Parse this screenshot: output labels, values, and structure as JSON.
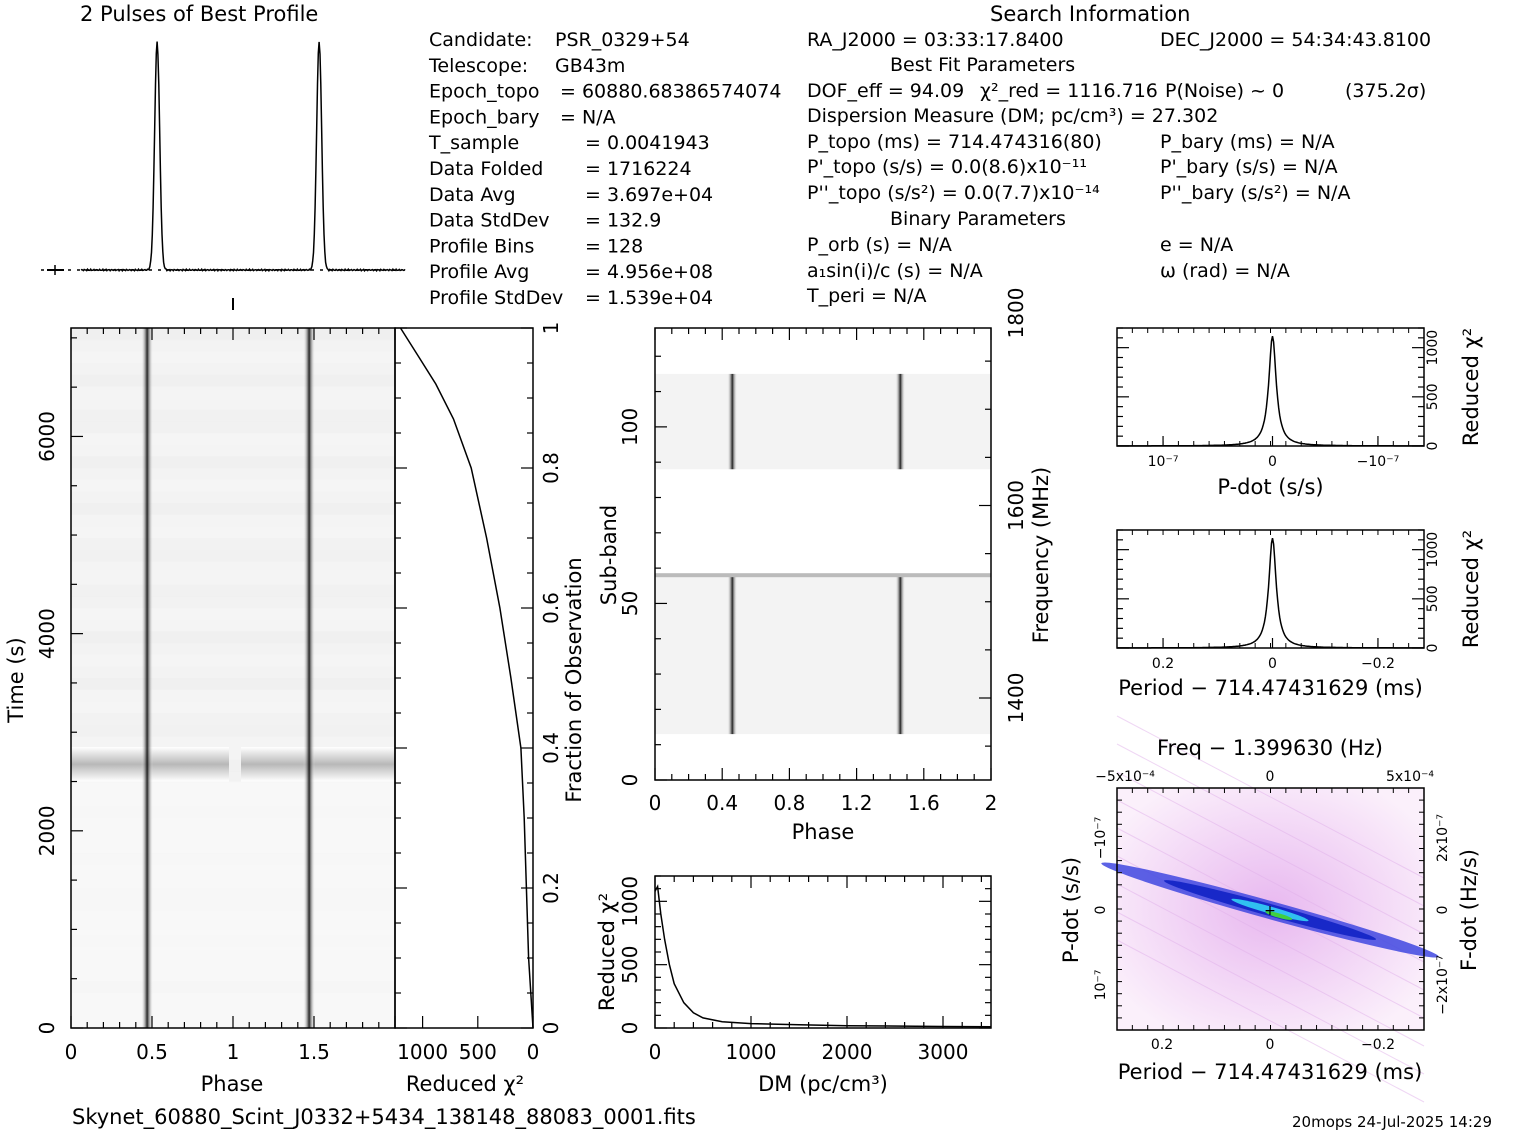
{
  "header": {
    "left_title": "2 Pulses of Best Profile",
    "right_title": "Search Information"
  },
  "info_left": [
    {
      "name": "Candidate:",
      "value": "PSR_0329+54"
    },
    {
      "name": "Telescope:",
      "value": "GB43m"
    },
    {
      "name": "Epoch_topo",
      "value": "= 60880.68386574074"
    },
    {
      "name": "Epoch_bary",
      "value": "= N/A"
    },
    {
      "name": "T_sample",
      "value": "=   0.0041943"
    },
    {
      "name": "Data Folded",
      "value": "=   1716224"
    },
    {
      "name": "Data Avg",
      "value": "=   3.697e+04"
    },
    {
      "name": "Data StdDev",
      "value": "=   132.9"
    },
    {
      "name": "Profile Bins",
      "value": "=   128"
    },
    {
      "name": "Profile Avg",
      "value": "=   4.956e+08"
    },
    {
      "name": "Profile StdDev",
      "value": "=   1.539e+04"
    }
  ],
  "info_right": {
    "ra": "RA_J2000 = 03:33:17.8400",
    "dec": "DEC_J2000 = 54:34:43.8100",
    "best_fit_header": "Best Fit Parameters",
    "dof": "DOF_eff = 94.09",
    "chi2_red": "χ²_red = 1116.716",
    "p_noise": "P(Noise) ~ 0",
    "sigma": "(375.2σ)",
    "dm": "Dispersion Measure (DM; pc/cm³) = 27.302",
    "p_topo": "P_topo (ms) =  714.474316(80)",
    "p_bary": "P_bary (ms) = N/A",
    "pd_topo": "P'_topo (s/s) = 0.0(8.6)x10⁻¹¹",
    "pd_bary": "P'_bary (s/s) = N/A",
    "pdd_topo": "P''_topo (s/s²) = 0.0(7.7)x10⁻¹⁴",
    "pdd_bary": "P''_bary (s/s²) = N/A",
    "binary_header": "Binary Parameters",
    "p_orb": "P_orb (s) = N/A",
    "e": "e = N/A",
    "a1sini": "a₁sin(i)/c (s) = N/A",
    "omega": "ω (rad) = N/A",
    "t_peri": "T_peri = N/A"
  },
  "footer": {
    "filename": "Skynet_60880_Scint_J0332+5434_138148_88083_0001.fits",
    "stamp": "20mops 24-Jul-2025 14:29"
  },
  "colors": {
    "ink": "#000000",
    "grey_band": "#b4b4b4",
    "ppdot_blue": "#1020d0",
    "ppdot_cyan": "#30c0f0",
    "ppdot_green": "#40d040",
    "ppdot_pink": "#f0d0f0"
  },
  "chart_data": [
    {
      "id": "profile",
      "type": "line",
      "title": "2 Pulses of Best Profile",
      "x_range": [
        0,
        2
      ],
      "pulse_phases": [
        0.47,
        1.47
      ],
      "baseline": "dotted",
      "error_marker": "left"
    },
    {
      "id": "time_phase",
      "type": "heatmap",
      "xlabel": "Phase",
      "ylabel": "Time (s)",
      "x_ticks": [
        "0",
        "0.5",
        "1",
        "1.5"
      ],
      "y_ticks": [
        "0",
        "2000",
        "4000",
        "6000"
      ],
      "xlim": [
        0,
        2
      ],
      "ylim": [
        0,
        7100
      ],
      "pulse_phases": [
        0.47,
        1.47
      ],
      "grey_band_time": [
        2500,
        2850
      ]
    },
    {
      "id": "chi2_vs_fraction",
      "type": "line",
      "xlabel": "Reduced χ²",
      "ylabel": "Fraction of Observation",
      "x_ticks": [
        "1000",
        "500",
        "0"
      ],
      "y_ticks": [
        "0",
        "0.2",
        "0.4",
        "0.6",
        "0.8",
        "1"
      ],
      "xlim": [
        1250,
        0
      ],
      "ylim": [
        0,
        1
      ],
      "x": [
        0,
        40,
        60,
        80,
        110,
        200,
        300,
        420,
        560,
        720,
        880,
        1040,
        1200
      ],
      "y": [
        0.0,
        0.1,
        0.2,
        0.3,
        0.4,
        0.5,
        0.6,
        0.7,
        0.8,
        0.87,
        0.92,
        0.96,
        1.0
      ]
    },
    {
      "id": "subband_phase",
      "type": "heatmap",
      "xlabel": "Phase",
      "ylabel": "Sub-band",
      "y2label": "Frequency (MHz)",
      "x_ticks": [
        "0",
        "0.4",
        "0.8",
        "1.2",
        "1.6",
        "2"
      ],
      "y_ticks": [
        "0",
        "50",
        "100"
      ],
      "y2_ticks": [
        "1400",
        "1600",
        "1800"
      ],
      "xlim": [
        0,
        2
      ],
      "ylim": [
        0,
        128
      ],
      "pulse_phases": [
        0.46,
        1.46
      ],
      "signal_subbands": [
        [
          13,
          58
        ],
        [
          88,
          115
        ]
      ]
    },
    {
      "id": "dm_curve",
      "type": "line",
      "xlabel": "DM (pc/cm³)",
      "ylabel": "Reduced χ²",
      "x_ticks": [
        "0",
        "1000",
        "2000",
        "3000"
      ],
      "y_ticks": [
        "0",
        "500",
        "1000"
      ],
      "xlim": [
        0,
        3500
      ],
      "ylim": [
        0,
        1200
      ],
      "x": [
        0,
        27,
        60,
        100,
        150,
        200,
        300,
        400,
        500,
        700,
        1000,
        1500,
        2000,
        3000,
        3500
      ],
      "y": [
        1080,
        1117,
        900,
        700,
        500,
        350,
        200,
        120,
        80,
        50,
        35,
        25,
        18,
        12,
        10
      ]
    },
    {
      "id": "pdot_curve",
      "type": "line",
      "xlabel": "P-dot (s/s)",
      "ylabel": "Reduced χ²",
      "x_ticks": [
        "10⁻⁷",
        "0",
        "−10⁻⁷"
      ],
      "y_ticks": [
        "0",
        "500",
        "1000"
      ],
      "ylim": [
        0,
        1200
      ],
      "peak": 1117
    },
    {
      "id": "period_curve",
      "type": "line",
      "xlabel": "Period − 714.47431629 (ms)",
      "ylabel": "Reduced χ²",
      "x_ticks": [
        "0.2",
        "0",
        "−0.2"
      ],
      "y_ticks": [
        "0",
        "500",
        "1000"
      ],
      "ylim": [
        0,
        1200
      ],
      "peak": 1117
    },
    {
      "id": "p_pdot",
      "type": "heatmap",
      "title": "Freq − 1.399630 (Hz)",
      "xlabel": "Period − 714.47431629 (ms)",
      "ylabel": "P-dot (s/s)",
      "y2label": "F-dot (Hz/s)",
      "x_ticks": [
        "0.2",
        "0",
        "−0.2"
      ],
      "x2_ticks": [
        "−5x10⁻⁴",
        "0",
        "5x10⁻⁴"
      ],
      "y_ticks": [
        "−10⁻⁷",
        "0",
        "10⁻⁷"
      ],
      "y2_ticks": [
        "2x10⁻⁷",
        "0",
        "−2x10⁻⁷"
      ]
    }
  ]
}
